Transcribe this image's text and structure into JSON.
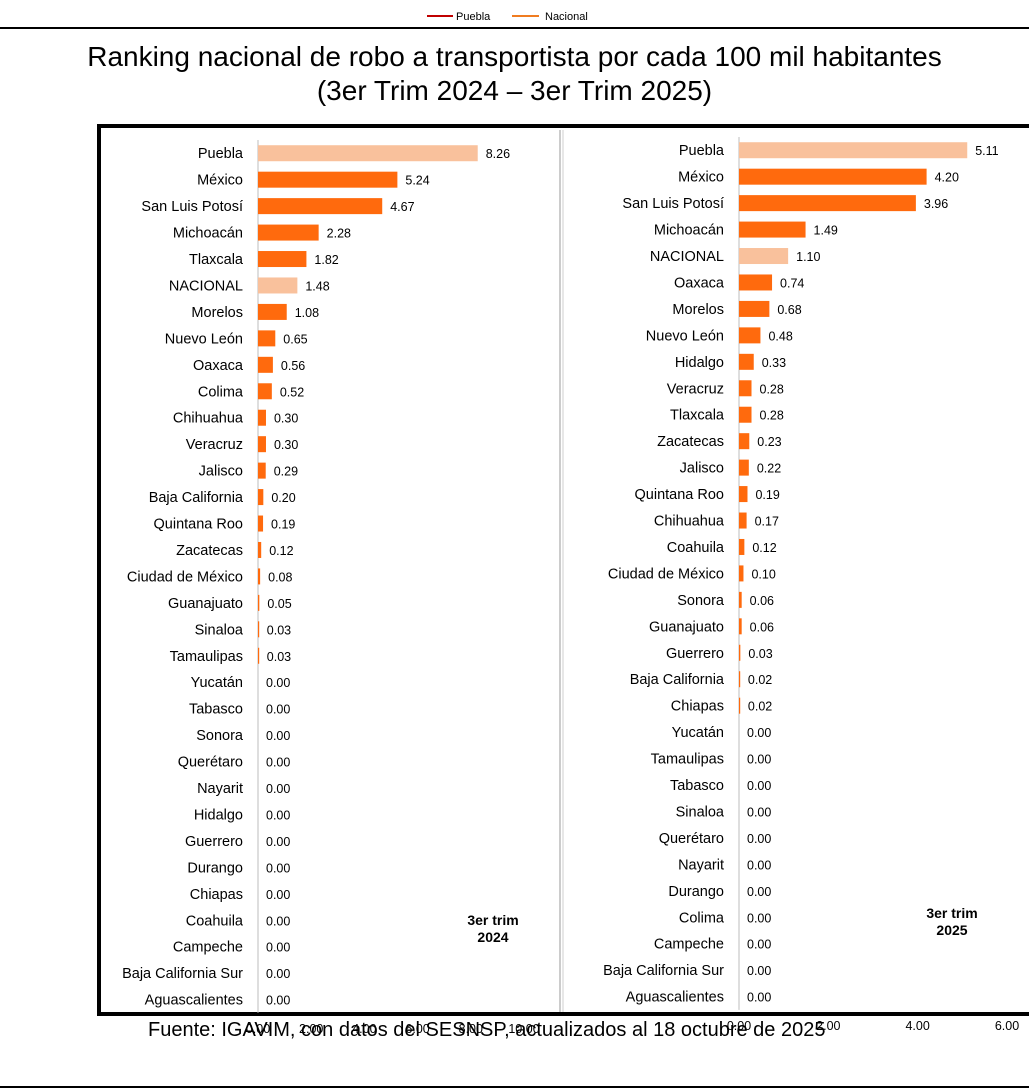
{
  "legend": {
    "items": [
      {
        "name": "Puebla",
        "color": "#c00000"
      },
      {
        "name": "Nacional",
        "color": "#f07c20"
      }
    ]
  },
  "title": {
    "line1": "Ranking nacional de robo a transportista por cada 100 mil habitantes",
    "line2": "(3er Trim 2024 – 3er Trim 2025)"
  },
  "source": "Fuente: IGAVIM, con datos del SESNSP, actualizados al 18 octubre de 2025",
  "colors": {
    "highlight": "#f9c19c",
    "bar": "#ff6a0d"
  },
  "chart_data": [
    {
      "type": "bar",
      "orientation": "horizontal",
      "period_label": [
        "3er trim",
        "2024"
      ],
      "xlim": [
        0,
        10
      ],
      "xticks": [
        "0.00",
        "2.00",
        "4.00",
        "6.00",
        "8.00",
        "10.00"
      ],
      "highlight": [
        "Puebla",
        "NACIONAL"
      ],
      "categories": [
        "Puebla",
        "México",
        "San Luis Potosí",
        "Michoacán",
        "Tlaxcala",
        "NACIONAL",
        "Morelos",
        "Nuevo León",
        "Oaxaca",
        "Colima",
        "Chihuahua",
        "Veracruz",
        "Jalisco",
        "Baja California",
        "Quintana Roo",
        "Zacatecas",
        "Ciudad de México",
        "Guanajuato",
        "Sinaloa",
        "Tamaulipas",
        "Yucatán",
        "Tabasco",
        "Sonora",
        "Querétaro",
        "Nayarit",
        "Hidalgo",
        "Guerrero",
        "Durango",
        "Chiapas",
        "Coahuila",
        "Campeche",
        "Baja California Sur",
        "Aguascalientes"
      ],
      "values": [
        8.26,
        5.24,
        4.67,
        2.28,
        1.82,
        1.48,
        1.08,
        0.65,
        0.56,
        0.52,
        0.3,
        0.3,
        0.29,
        0.2,
        0.19,
        0.12,
        0.08,
        0.05,
        0.03,
        0.03,
        0.0,
        0.0,
        0.0,
        0.0,
        0.0,
        0.0,
        0.0,
        0.0,
        0.0,
        0.0,
        0.0,
        0.0,
        0.0
      ],
      "labels": [
        "8.26",
        "5.24",
        "4.67",
        "2.28",
        "1.82",
        "1.48",
        "1.08",
        "0.65",
        "0.56",
        "0.52",
        "0.30",
        "0.30",
        "0.29",
        "0.20",
        "0.19",
        "0.12",
        "0.08",
        "0.05",
        "0.03",
        "0.03",
        "0.00",
        "0.00",
        "0.00",
        "0.00",
        "0.00",
        "0.00",
        "0.00",
        "0.00",
        "0.00",
        "0.00",
        "0.00",
        "0.00",
        "0.00"
      ]
    },
    {
      "type": "bar",
      "orientation": "horizontal",
      "period_label": [
        "3er trim",
        "2025"
      ],
      "xlim": [
        0,
        6
      ],
      "xticks": [
        "0.00",
        "2.00",
        "4.00",
        "6.00"
      ],
      "highlight": [
        "Puebla",
        "NACIONAL"
      ],
      "categories": [
        "Puebla",
        "México",
        "San Luis Potosí",
        "Michoacán",
        "NACIONAL",
        "Oaxaca",
        "Morelos",
        "Nuevo León",
        "Hidalgo",
        "Veracruz",
        "Tlaxcala",
        "Zacatecas",
        "Jalisco",
        "Quintana Roo",
        "Chihuahua",
        "Coahuila",
        "Ciudad de México",
        "Sonora",
        "Guanajuato",
        "Guerrero",
        "Baja California",
        "Chiapas",
        "Yucatán",
        "Tamaulipas",
        "Tabasco",
        "Sinaloa",
        "Querétaro",
        "Nayarit",
        "Durango",
        "Colima",
        "Campeche",
        "Baja California Sur",
        "Aguascalientes"
      ],
      "values": [
        5.11,
        4.2,
        3.96,
        1.49,
        1.1,
        0.74,
        0.68,
        0.48,
        0.33,
        0.28,
        0.28,
        0.23,
        0.22,
        0.19,
        0.17,
        0.12,
        0.1,
        0.06,
        0.06,
        0.03,
        0.02,
        0.02,
        0.0,
        0.0,
        0.0,
        0.0,
        0.0,
        0.0,
        0.0,
        0.0,
        0.0,
        0.0,
        0.0
      ],
      "labels": [
        "5.11",
        "4.20",
        "3.96",
        "1.49",
        "1.10",
        "0.74",
        "0.68",
        "0.48",
        "0.33",
        "0.28",
        "0.28",
        "0.23",
        "0.22",
        "0.19",
        "0.17",
        "0.12",
        "0.10",
        "0.06",
        "0.06",
        "0.03",
        "0.02",
        "0.02",
        "0.00",
        "0.00",
        "0.00",
        "0.00",
        "0.00",
        "0.00",
        "0.00",
        "0.00",
        "0.00",
        "0.00",
        "0.00"
      ]
    }
  ]
}
